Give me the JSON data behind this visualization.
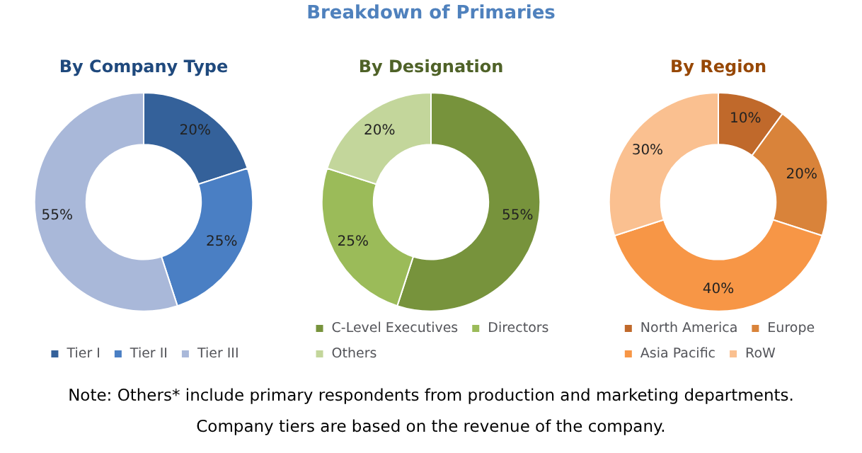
{
  "chart_data": [
    {
      "type": "other",
      "title": "Breakdown of Primaries",
      "annotations": [
        "Note: Others* include primary respondents from production and marketing departments.",
        "Company tiers are based on the revenue of the company."
      ]
    },
    {
      "type": "donut",
      "title": "By Company Type",
      "categories": [
        "Tier I",
        "Tier II",
        "Tier III"
      ],
      "values": [
        20,
        25,
        55
      ],
      "colors": [
        "#34619a",
        "#4a7fc4",
        "#a9b8d9"
      ],
      "value_labels": [
        "20%",
        "25%",
        "55%"
      ],
      "legend": "bottom"
    },
    {
      "type": "donut",
      "title": "By Designation",
      "categories": [
        "C-Level Executives",
        "Directors",
        "Others"
      ],
      "values": [
        55,
        25,
        20
      ],
      "colors": [
        "#77933c",
        "#9bbb59",
        "#c3d69b"
      ],
      "value_labels": [
        "55%",
        "25%",
        "20%"
      ],
      "legend": "bottom"
    },
    {
      "type": "donut",
      "title": "By Region",
      "categories": [
        "North America",
        "Europe",
        "Asia Pacific",
        "RoW"
      ],
      "values": [
        10,
        20,
        40,
        30
      ],
      "colors": [
        "#c0692b",
        "#d9833a",
        "#f79646",
        "#fac090"
      ],
      "value_labels": [
        "10%",
        "20%",
        "40%",
        "30%"
      ],
      "legend": "bottom"
    }
  ]
}
